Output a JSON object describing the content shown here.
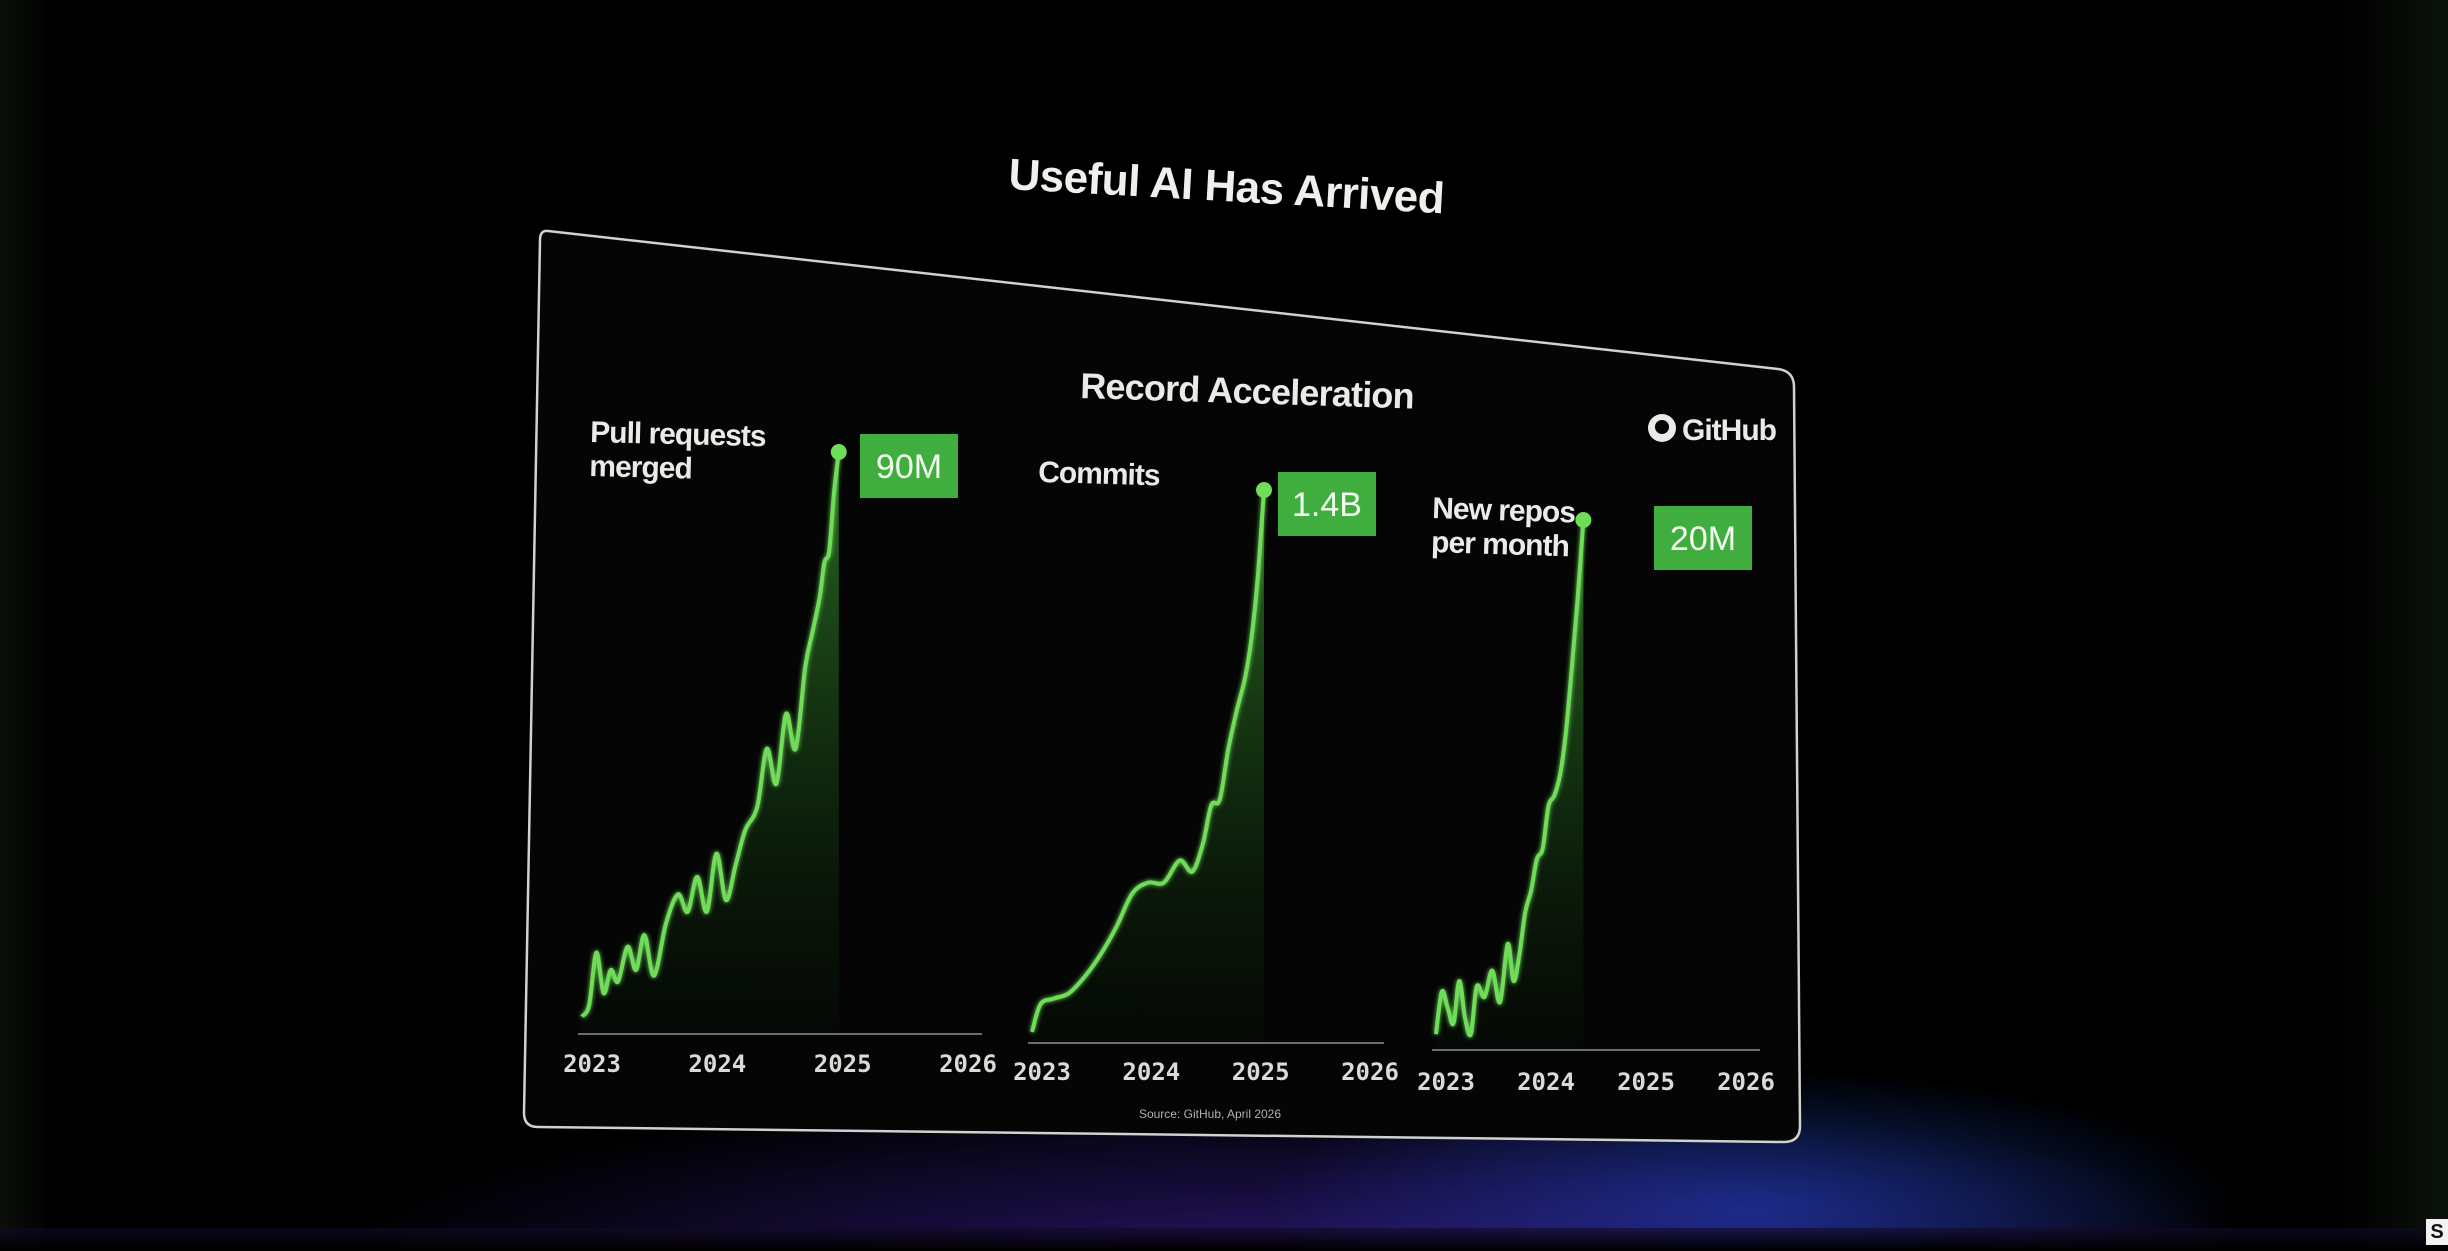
{
  "slide_title": "Useful AI Has Arrived",
  "panel_title": "Record Acceleration",
  "brand_label": "GitHub",
  "source_note": "Source: GitHub, April 2026",
  "colors": {
    "accent": "#6fdc5a",
    "badge": "#3fae3f",
    "panel_border": "#cfd2cf",
    "text": "#e8ebe6"
  },
  "icons": [
    "github-icon"
  ],
  "chart_data": [
    {
      "type": "area",
      "title": "",
      "label_lines": [
        "Pull requests",
        "merged"
      ],
      "badge": "90M",
      "x_ticks": [
        "2023",
        "2024",
        "2025",
        "2026"
      ],
      "x_range": [
        2023.0,
        2026.3
      ],
      "y_range": [
        0,
        100
      ],
      "grid": false,
      "points": [
        [
          2023.0,
          3
        ],
        [
          2023.06,
          5
        ],
        [
          2023.12,
          14
        ],
        [
          2023.18,
          7
        ],
        [
          2023.24,
          11
        ],
        [
          2023.3,
          9
        ],
        [
          2023.38,
          15
        ],
        [
          2023.45,
          11
        ],
        [
          2023.52,
          17
        ],
        [
          2023.6,
          10
        ],
        [
          2023.7,
          19
        ],
        [
          2023.8,
          24
        ],
        [
          2023.88,
          21
        ],
        [
          2023.96,
          27
        ],
        [
          2024.04,
          21
        ],
        [
          2024.12,
          31
        ],
        [
          2024.2,
          23
        ],
        [
          2024.28,
          29
        ],
        [
          2024.36,
          35
        ],
        [
          2024.46,
          39
        ],
        [
          2024.54,
          49
        ],
        [
          2024.62,
          43
        ],
        [
          2024.7,
          55
        ],
        [
          2024.78,
          49
        ],
        [
          2024.86,
          63
        ],
        [
          2024.92,
          69
        ],
        [
          2024.98,
          75
        ],
        [
          2025.02,
          81
        ],
        [
          2025.06,
          83
        ],
        [
          2025.1,
          93
        ],
        [
          2025.14,
          100
        ]
      ],
      "endpoint": true
    },
    {
      "type": "area",
      "title": "",
      "label_lines": [
        "Commits"
      ],
      "badge": "1.4B",
      "x_ticks": [
        "2023",
        "2024",
        "2025",
        "2026"
      ],
      "x_range": [
        2023.0,
        2026.3
      ],
      "y_range": [
        0,
        100
      ],
      "grid": false,
      "points": [
        [
          2023.0,
          2
        ],
        [
          2023.08,
          7
        ],
        [
          2023.2,
          8
        ],
        [
          2023.35,
          9
        ],
        [
          2023.5,
          12
        ],
        [
          2023.65,
          16
        ],
        [
          2023.8,
          21
        ],
        [
          2023.95,
          27
        ],
        [
          2024.1,
          29
        ],
        [
          2024.25,
          29
        ],
        [
          2024.4,
          33
        ],
        [
          2024.52,
          31
        ],
        [
          2024.62,
          36
        ],
        [
          2024.7,
          43
        ],
        [
          2024.78,
          44
        ],
        [
          2024.86,
          53
        ],
        [
          2024.94,
          60
        ],
        [
          2025.02,
          66
        ],
        [
          2025.08,
          73
        ],
        [
          2025.14,
          84
        ],
        [
          2025.2,
          100
        ]
      ],
      "endpoint": true
    },
    {
      "type": "area",
      "title": "",
      "label_lines": [
        "New repos",
        "per month"
      ],
      "badge": "20M",
      "x_ticks": [
        "2023",
        "2024",
        "2025",
        "2026"
      ],
      "x_range": [
        2023.0,
        2026.3
      ],
      "y_range": [
        0,
        100
      ],
      "grid": false,
      "points": [
        [
          2023.0,
          3
        ],
        [
          2023.06,
          11
        ],
        [
          2023.12,
          8
        ],
        [
          2023.18,
          5
        ],
        [
          2023.24,
          13
        ],
        [
          2023.3,
          6
        ],
        [
          2023.36,
          3
        ],
        [
          2023.42,
          12
        ],
        [
          2023.5,
          10
        ],
        [
          2023.58,
          15
        ],
        [
          2023.66,
          9
        ],
        [
          2023.74,
          20
        ],
        [
          2023.8,
          13
        ],
        [
          2023.86,
          18
        ],
        [
          2023.92,
          26
        ],
        [
          2023.98,
          30
        ],
        [
          2024.04,
          36
        ],
        [
          2024.1,
          38
        ],
        [
          2024.16,
          46
        ],
        [
          2024.22,
          48
        ],
        [
          2024.28,
          52
        ],
        [
          2024.34,
          60
        ],
        [
          2024.4,
          72
        ],
        [
          2024.46,
          85
        ],
        [
          2024.52,
          100
        ]
      ],
      "endpoint": true
    }
  ]
}
